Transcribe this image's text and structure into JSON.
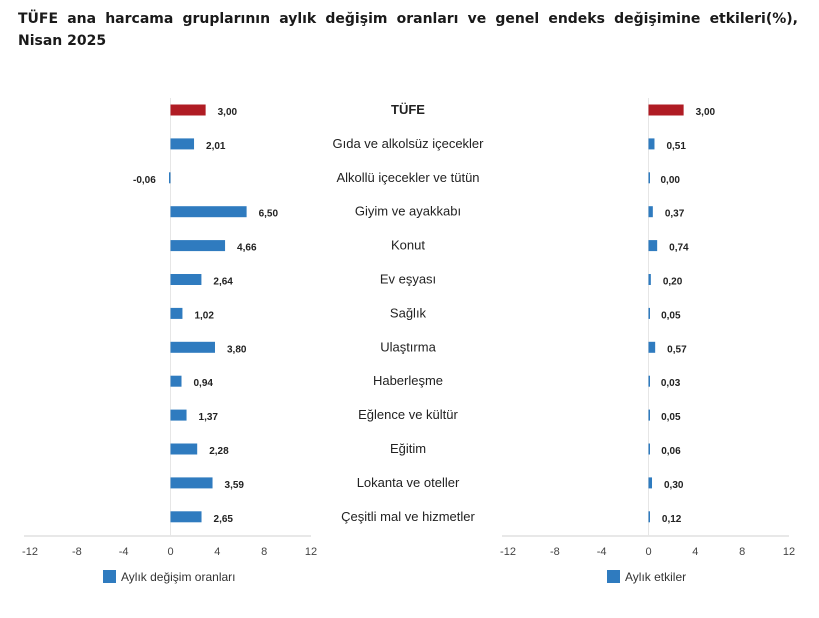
{
  "title": "TÜFE ana harcama gruplarının aylık değişim oranları ve genel endeks değişimine etkileri(%), Nisan 2025",
  "colors": {
    "highlight": "#b01c24",
    "bar": "#2f7bbf",
    "axis": "#d0d0d0"
  },
  "chart_data": [
    {
      "type": "bar",
      "orientation": "horizontal",
      "legend": "Aylık değişim oranları",
      "legend_position": "bottom-left",
      "xlim": [
        -12,
        12
      ],
      "xticks": [
        "-12",
        "-8",
        "-4",
        "0",
        "4",
        "8",
        "12"
      ],
      "xtick_values": [
        -12,
        -8,
        -4,
        0,
        4,
        8,
        12
      ],
      "categories": [
        "TÜFE",
        "Gıda ve alkolsüz içecekler",
        "Alkollü içecekler ve tütün",
        "Giyim ve ayakkabı",
        "Konut",
        "Ev eşyası",
        "Sağlık",
        "Ulaştırma",
        "Haberleşme",
        "Eğlence ve kültür",
        "Eğitim",
        "Lokanta ve oteller",
        "Çeşitli mal ve hizmetler"
      ],
      "values": [
        3.0,
        2.01,
        -0.06,
        6.5,
        4.66,
        2.64,
        1.02,
        3.8,
        0.94,
        1.37,
        2.28,
        3.59,
        2.65
      ],
      "labels": [
        "3,00",
        "2,01",
        "-0,06",
        "6,50",
        "4,66",
        "2,64",
        "1,02",
        "3,80",
        "0,94",
        "1,37",
        "2,28",
        "3,59",
        "2,65"
      ],
      "highlight_index": 0
    },
    {
      "type": "bar",
      "orientation": "horizontal",
      "legend": "Aylık etkiler",
      "legend_position": "bottom-left",
      "xlim": [
        -12,
        12
      ],
      "xticks": [
        "-12",
        "-8",
        "-4",
        "0",
        "4",
        "8",
        "12"
      ],
      "xtick_values": [
        -12,
        -8,
        -4,
        0,
        4,
        8,
        12
      ],
      "values": [
        3.0,
        0.51,
        0.0,
        0.37,
        0.74,
        0.2,
        0.05,
        0.57,
        0.03,
        0.05,
        0.06,
        0.3,
        0.12
      ],
      "labels": [
        "3,00",
        "0,51",
        "0,00",
        "0,37",
        "0,74",
        "0,20",
        "0,05",
        "0,57",
        "0,03",
        "0,05",
        "0,06",
        "0,30",
        "0,12"
      ],
      "highlight_index": 0
    }
  ]
}
